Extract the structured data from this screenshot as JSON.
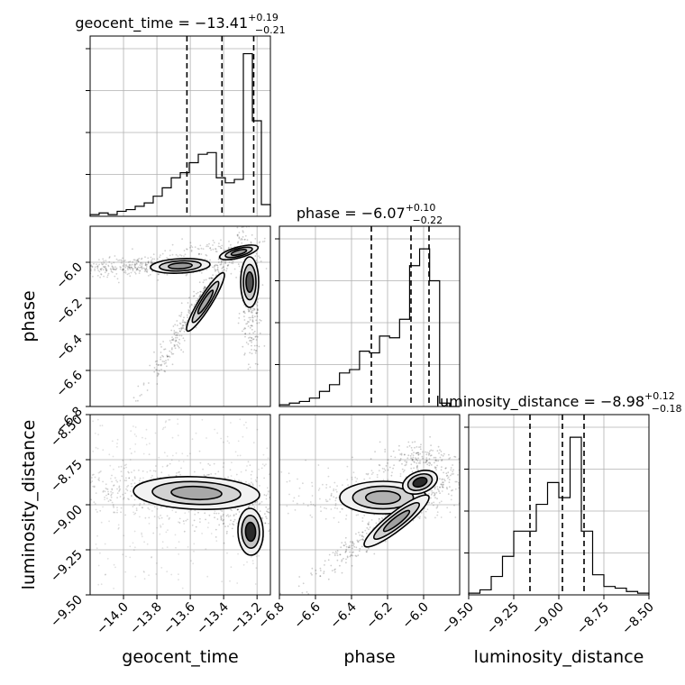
{
  "chart_data": {
    "type": "corner",
    "parameters": [
      "geocent_time",
      "phase",
      "luminosity_distance"
    ],
    "titles": [
      {
        "name": "geocent_time",
        "median": "−13.41",
        "plus": "+0.19",
        "minus": "−0.21"
      },
      {
        "name": "phase",
        "median": "−6.07",
        "plus": "+0.10",
        "minus": "−0.22"
      },
      {
        "name": "luminosity_distance",
        "median": "−8.98",
        "plus": "+0.12",
        "minus": "−0.18"
      }
    ],
    "ranges": {
      "geocent_time": [
        -14.2,
        -13.12
      ],
      "phase": [
        -6.8,
        -5.8
      ],
      "luminosity_distance": [
        -9.5,
        -8.5
      ]
    },
    "ticks": {
      "geocent_time": [
        -14.0,
        -13.8,
        -13.6,
        -13.4,
        -13.2
      ],
      "phase": [
        -6.8,
        -6.6,
        -6.4,
        -6.2,
        -6.0
      ],
      "luminosity_distance": [
        -9.5,
        -9.25,
        -9.0,
        -8.75,
        -8.5
      ]
    },
    "tick_labels": {
      "geocent_time": [
        "−14.0",
        "−13.8",
        "−13.6",
        "−13.4",
        "−13.2"
      ],
      "phase": [
        "−6.8",
        "−6.6",
        "−6.4",
        "−6.2",
        "−6.0"
      ],
      "luminosity_distance": [
        "−9.50",
        "−9.25",
        "−9.00",
        "−8.75",
        "−8.50"
      ]
    },
    "quantiles": {
      "geocent_time": [
        -13.62,
        -13.41,
        -13.22
      ],
      "phase": [
        -6.29,
        -6.07,
        -5.97
      ],
      "luminosity_distance": [
        -9.16,
        -8.98,
        -8.86
      ]
    },
    "histograms": {
      "geocent_time": [
        0.01,
        0.02,
        0.01,
        0.03,
        0.04,
        0.06,
        0.08,
        0.12,
        0.17,
        0.23,
        0.26,
        0.32,
        0.37,
        0.38,
        0.23,
        0.2,
        0.22,
        0.97,
        0.57,
        0.07
      ],
      "phase": [
        0.01,
        0.02,
        0.03,
        0.05,
        0.09,
        0.13,
        0.2,
        0.22,
        0.33,
        0.32,
        0.42,
        0.41,
        0.52,
        0.84,
        0.94,
        0.75,
        0.02,
        0.0
      ],
      "luminosity_distance": [
        0.01,
        0.03,
        0.11,
        0.23,
        0.38,
        0.38,
        0.54,
        0.67,
        0.58,
        0.94,
        0.38,
        0.12,
        0.05,
        0.04,
        0.02,
        0.01
      ]
    },
    "grid": true
  }
}
